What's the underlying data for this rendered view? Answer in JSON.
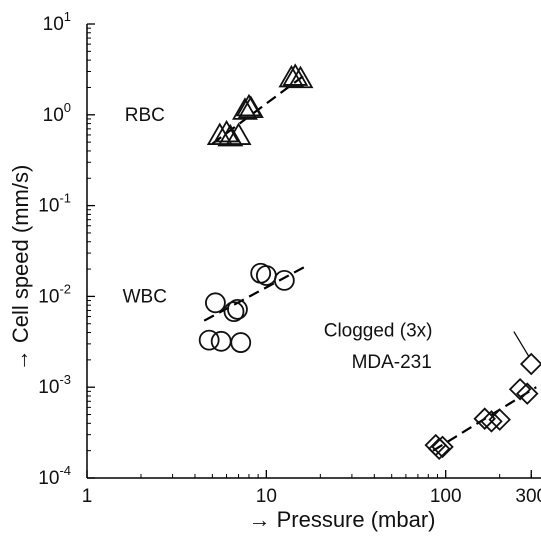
{
  "chart_data": {
    "type": "scatter",
    "title": "",
    "xlabel": "→ Pressure (mbar)",
    "ylabel": "→ Cell speed (mm/s)",
    "x_scale": "log",
    "y_scale": "log",
    "xlim": [
      1,
      340
    ],
    "ylim": [
      0.0001,
      10
    ],
    "grid": false,
    "legend": "none",
    "x_ticks": [
      {
        "value": 1,
        "label": "1"
      },
      {
        "value": 10,
        "label": "10"
      },
      {
        "value": 100,
        "label": "100"
      },
      {
        "value": 300,
        "label": "300"
      }
    ],
    "y_ticks": [
      {
        "value": 0.0001,
        "base": "10",
        "exp": "-4"
      },
      {
        "value": 0.001,
        "base": "10",
        "exp": "-3"
      },
      {
        "value": 0.01,
        "base": "10",
        "exp": "-2"
      },
      {
        "value": 0.1,
        "base": "10",
        "exp": "-1"
      },
      {
        "value": 1,
        "base": "10",
        "exp": "0"
      },
      {
        "value": 10,
        "base": "10",
        "exp": "1"
      }
    ],
    "series": [
      {
        "name": "RBC",
        "marker": "triangle",
        "points": [
          {
            "x": 5.5,
            "y": 0.58
          },
          {
            "x": 6.0,
            "y": 0.62
          },
          {
            "x": 6.3,
            "y": 0.56
          },
          {
            "x": 7.0,
            "y": 0.58
          },
          {
            "x": 7.6,
            "y": 1.1
          },
          {
            "x": 8.0,
            "y": 1.2
          },
          {
            "x": 8.2,
            "y": 1.15
          },
          {
            "x": 13.8,
            "y": 2.5
          },
          {
            "x": 14.5,
            "y": 2.6
          },
          {
            "x": 15.5,
            "y": 2.45
          }
        ],
        "fit": {
          "x": [
            5.0,
            17.0
          ],
          "y": [
            0.48,
            2.9
          ]
        }
      },
      {
        "name": "WBC",
        "marker": "circle",
        "points": [
          {
            "x": 5.2,
            "y": 0.0085
          },
          {
            "x": 6.6,
            "y": 0.0068
          },
          {
            "x": 6.9,
            "y": 0.0072
          },
          {
            "x": 9.3,
            "y": 0.018
          },
          {
            "x": 10.0,
            "y": 0.017
          },
          {
            "x": 12.6,
            "y": 0.015
          },
          {
            "x": 4.8,
            "y": 0.0033
          },
          {
            "x": 5.6,
            "y": 0.0032
          },
          {
            "x": 7.2,
            "y": 0.0031
          }
        ],
        "fit": {
          "x": [
            4.5,
            17.0
          ],
          "y": [
            0.0054,
            0.022
          ]
        }
      },
      {
        "name": "MDA-231",
        "marker": "diamond",
        "points": [
          {
            "x": 88,
            "y": 0.00023
          },
          {
            "x": 92,
            "y": 0.00021
          },
          {
            "x": 96,
            "y": 0.00022
          },
          {
            "x": 165,
            "y": 0.00045
          },
          {
            "x": 180,
            "y": 0.00042
          },
          {
            "x": 200,
            "y": 0.00044
          },
          {
            "x": 260,
            "y": 0.00095
          },
          {
            "x": 285,
            "y": 0.00085
          },
          {
            "x": 300,
            "y": 0.0018
          }
        ],
        "fit": {
          "x": [
            85,
            320
          ],
          "y": [
            0.0002,
            0.001
          ]
        }
      }
    ],
    "annotations": [
      {
        "text": "RBC",
        "at": {
          "x": 2.1,
          "y": 1.0
        }
      },
      {
        "text": "WBC",
        "at": {
          "x": 2.1,
          "y": 0.01
        }
      },
      {
        "text": "Clogged (3x)",
        "at": {
          "x": 42,
          "y": 0.0042
        }
      },
      {
        "text": "MDA-231",
        "at": {
          "x": 50,
          "y": 0.0019
        }
      }
    ],
    "annotation_pointer": {
      "from": {
        "x": 240,
        "y": 0.0041
      },
      "to": {
        "x": 290,
        "y": 0.0022
      }
    }
  }
}
